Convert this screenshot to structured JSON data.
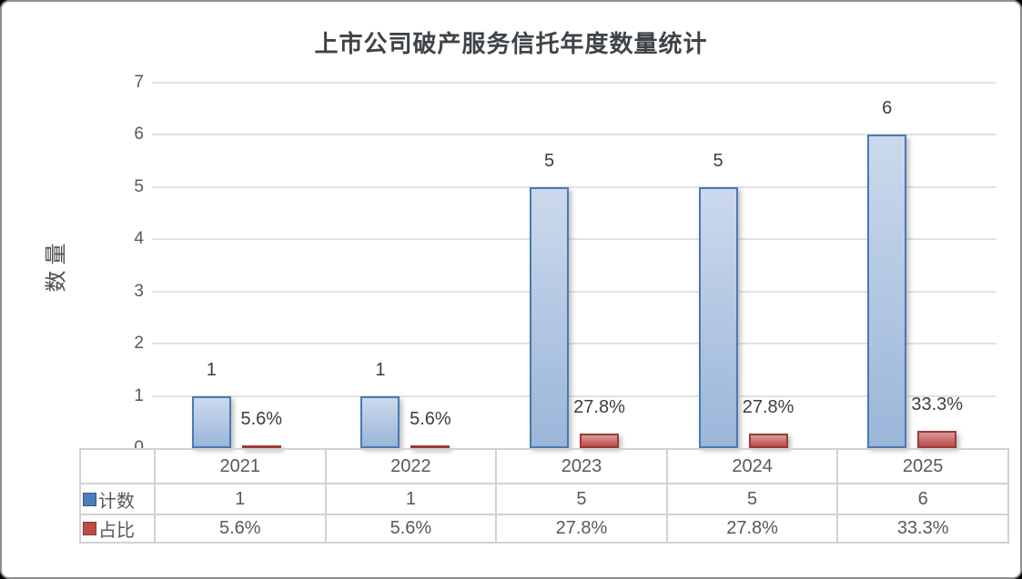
{
  "chart_data": {
    "type": "bar",
    "title": "上市公司破产服务信托年度数量统计",
    "ylabel": "数量",
    "categories": [
      "2021",
      "2022",
      "2023",
      "2024",
      "2025"
    ],
    "series": [
      {
        "name": "计数",
        "axis_values": [
          1,
          1,
          5,
          5,
          6
        ],
        "labels": [
          "1",
          "1",
          "5",
          "5",
          "6"
        ],
        "fill_top": "#ccd9ec",
        "fill_bottom": "#9ab6d9",
        "border": "#4a79b3",
        "swatch_fill": "#4f7cba",
        "swatch_border": "#38598a"
      },
      {
        "name": "占比",
        "axis_values": [
          0.056,
          0.056,
          0.278,
          0.278,
          0.333
        ],
        "labels": [
          "5.6%",
          "5.6%",
          "27.8%",
          "27.8%",
          "33.3%"
        ],
        "fill_top": "#d99a98",
        "fill_bottom": "#bc4f4c",
        "border": "#9d3a37",
        "swatch_fill": "#bf4b48",
        "swatch_border": "#8d3532"
      }
    ],
    "ylim": [
      0,
      7
    ],
    "yticks": [
      0,
      1,
      2,
      3,
      4,
      5,
      6,
      7
    ],
    "grid": true,
    "legend_position": "table-rows-left",
    "colors": {
      "gridline": "#e2e2e2",
      "tick_text": "#595959",
      "bar_label_text": "#3d3d3d",
      "title_text": "#3e4347",
      "table_border": "#d2d2d2"
    }
  }
}
